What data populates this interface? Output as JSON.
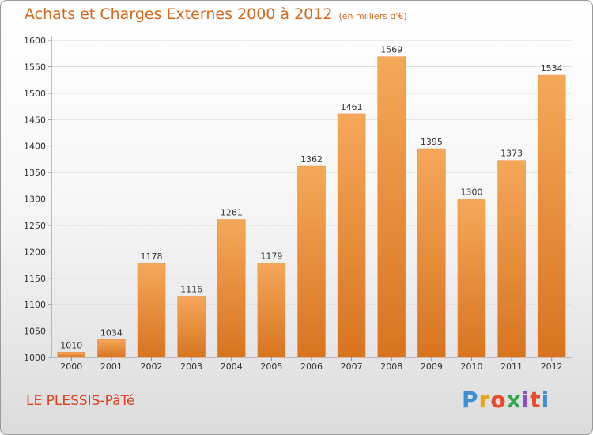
{
  "header": {
    "title": "Achats et Charges Externes 2000 à 2012",
    "unit": "(en milliers d'€)"
  },
  "footer": {
    "commune": "LE PLESSIS-PâTé",
    "logo_text": "Proxiti",
    "logo_colors": [
      "#3a8fd6",
      "#e8a21a",
      "#e84a2a",
      "#2fa84f",
      "#8a4fc8",
      "#e84a2a",
      "#3a8fd6"
    ]
  },
  "colors": {
    "bar_top": "#f5a85a",
    "bar_bottom": "#d8741f",
    "grid": "#d9d9d9",
    "axis": "#888888"
  },
  "chart_data": {
    "type": "bar",
    "title": "Achats et Charges Externes 2000 à 2012",
    "categories": [
      "2000",
      "2001",
      "2002",
      "2003",
      "2004",
      "2005",
      "2006",
      "2007",
      "2008",
      "2009",
      "2010",
      "2011",
      "2012"
    ],
    "values": [
      1010,
      1034,
      1178,
      1116,
      1261,
      1179,
      1362,
      1461,
      1569,
      1395,
      1300,
      1373,
      1534
    ],
    "ylim": [
      1000,
      1600
    ],
    "yticks": [
      1000,
      1050,
      1100,
      1150,
      1200,
      1250,
      1300,
      1350,
      1400,
      1450,
      1500,
      1550,
      1600
    ],
    "xlabel": "",
    "ylabel": "",
    "grid": true
  }
}
